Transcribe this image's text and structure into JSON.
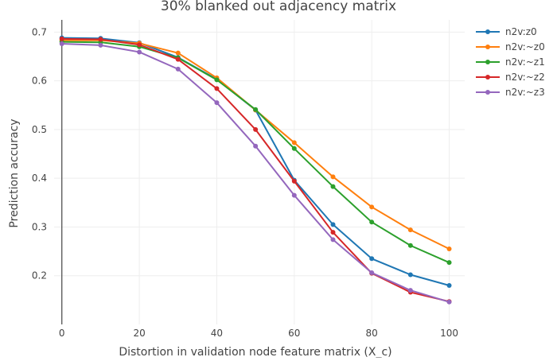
{
  "chart_data": {
    "type": "line",
    "title": "30% blanked out adjacency matrix",
    "xlabel": "Distortion in validation node feature matrix (X_c)",
    "ylabel": "Prediction accuracy",
    "xlim": [
      -2,
      104
    ],
    "ylim": [
      0.1,
      0.725
    ],
    "xticks": [
      0,
      20,
      40,
      60,
      80,
      100
    ],
    "xtick_labels": [
      "0",
      "20",
      "40",
      "60",
      "80",
      "100"
    ],
    "yticks": [
      0.2,
      0.3,
      0.4,
      0.5,
      0.6,
      0.7
    ],
    "ytick_labels": [
      "0.2",
      "0.3",
      "0.4",
      "0.5",
      "0.6",
      "0.7"
    ],
    "grid": true,
    "legend_position": "top-right",
    "x": [
      0,
      10,
      20,
      30,
      40,
      50,
      60,
      70,
      80,
      90,
      100
    ],
    "series": [
      {
        "name": "n2v:z0",
        "color": "#1f77b4",
        "values": [
          0.688,
          0.687,
          0.678,
          0.648,
          0.603,
          0.54,
          0.396,
          0.305,
          0.235,
          0.202,
          0.18
        ]
      },
      {
        "name": "n2v:~z0",
        "color": "#ff7f0e",
        "values": [
          0.683,
          0.683,
          0.677,
          0.657,
          0.606,
          0.54,
          0.473,
          0.403,
          0.341,
          0.294,
          0.255
        ]
      },
      {
        "name": "n2v:~z1",
        "color": "#2ca02c",
        "values": [
          0.68,
          0.679,
          0.67,
          0.647,
          0.602,
          0.541,
          0.461,
          0.383,
          0.31,
          0.262,
          0.227
        ]
      },
      {
        "name": "n2v:~z2",
        "color": "#d62728",
        "values": [
          0.686,
          0.685,
          0.674,
          0.644,
          0.584,
          0.5,
          0.394,
          0.289,
          0.205,
          0.166,
          0.147
        ]
      },
      {
        "name": "n2v:~z3",
        "color": "#9467bd",
        "values": [
          0.676,
          0.673,
          0.659,
          0.624,
          0.555,
          0.466,
          0.365,
          0.274,
          0.206,
          0.17,
          0.146
        ]
      }
    ]
  }
}
